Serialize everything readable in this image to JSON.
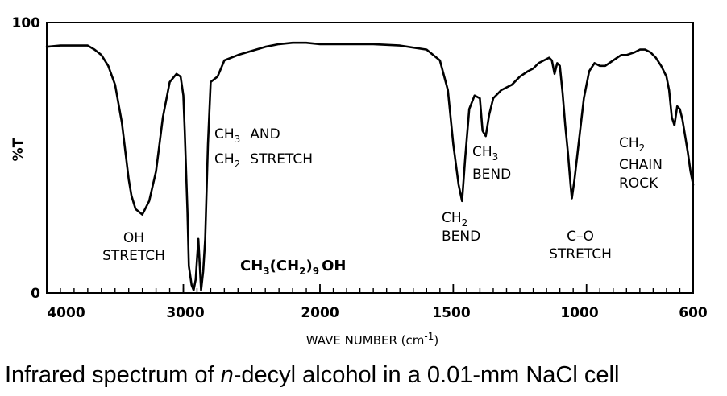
{
  "chart_data": {
    "type": "line",
    "ylabel": "%T",
    "xlabel": "WAVE NUMBER (cm",
    "xlabel_sup": "-1",
    "xlabel_end": ")",
    "xlim": [
      4000,
      600
    ],
    "ylim": [
      0,
      100
    ],
    "x_ticks": [
      4000,
      3000,
      2000,
      1500,
      1000,
      600
    ],
    "y_ticks": [
      0,
      100
    ],
    "grid": false,
    "series": [
      {
        "x": [
          4000,
          3900,
          3800,
          3700,
          3650,
          3600,
          3550,
          3500,
          3450,
          3400,
          3380,
          3350,
          3300,
          3250,
          3200,
          3150,
          3100,
          3050,
          3020,
          3000,
          2990,
          2970,
          2960,
          2940,
          2925,
          2910,
          2890,
          2870,
          2855,
          2840,
          2820,
          2800,
          2750,
          2700,
          2600,
          2500,
          2400,
          2300,
          2200,
          2100,
          2000,
          1900,
          1800,
          1700,
          1600,
          1550,
          1520,
          1500,
          1480,
          1467,
          1455,
          1440,
          1420,
          1400,
          1390,
          1378,
          1365,
          1350,
          1320,
          1300,
          1280,
          1250,
          1220,
          1200,
          1180,
          1160,
          1140,
          1130,
          1120,
          1110,
          1100,
          1090,
          1080,
          1070,
          1060,
          1055,
          1045,
          1030,
          1010,
          990,
          970,
          950,
          930,
          900,
          870,
          850,
          820,
          800,
          780,
          760,
          740,
          720,
          700,
          690,
          680,
          670,
          660,
          650,
          640,
          630,
          620,
          610,
          600
        ],
        "y": [
          91,
          91.5,
          91.5,
          91.5,
          90,
          88,
          84,
          77,
          63,
          42,
          36,
          31,
          29,
          34,
          45,
          65,
          78,
          81,
          80,
          73,
          60,
          30,
          10,
          3,
          1,
          5,
          20,
          1,
          8,
          20,
          55,
          78,
          80,
          86,
          88,
          89.5,
          91,
          92,
          92.5,
          92.5,
          92,
          92,
          92,
          91.5,
          90,
          86,
          75,
          55,
          40,
          34,
          50,
          68,
          73,
          72,
          60,
          58,
          66,
          72,
          75,
          76,
          77,
          80,
          82,
          83,
          85,
          86,
          87,
          86,
          81,
          85,
          84,
          74,
          62,
          52,
          40,
          35,
          42,
          55,
          72,
          82,
          85,
          84,
          84,
          86,
          88,
          88,
          89,
          90,
          90,
          89,
          87,
          84,
          80,
          75,
          65,
          62,
          69,
          68,
          64,
          58,
          52,
          45,
          40
        ]
      }
    ],
    "annotations": [
      {
        "lines": [
          "OH",
          "STRETCH"
        ]
      },
      {
        "lines": [
          "CH3  AND",
          "CH2  STRETCH"
        ]
      },
      {
        "lines": [
          "CH3(CH2)9OH"
        ]
      },
      {
        "lines": [
          "CH2",
          "BEND"
        ]
      },
      {
        "lines": [
          "CH3",
          "BEND"
        ]
      },
      {
        "lines": [
          "C–O",
          "STRETCH"
        ]
      },
      {
        "lines": [
          "CH2",
          "CHAIN",
          "ROCK"
        ]
      }
    ]
  },
  "labels": {
    "ylabel": "%T",
    "y_top": "100",
    "y_bottom": "0",
    "x_ticks": [
      "4000",
      "3000",
      "2000",
      "1500",
      "1000",
      "600"
    ],
    "oh": [
      "OH",
      "STRETCH"
    ],
    "ch_stretch_a": "CH",
    "ch_stretch_a_sub": "3",
    "ch_stretch_a_rest": "AND",
    "ch_stretch_b": "CH",
    "ch_stretch_b_sub": "2",
    "ch_stretch_b_rest": "STRETCH",
    "formula_a": "CH",
    "formula_a_sub": "3",
    "formula_b": "(CH",
    "formula_b_sub": "2",
    "formula_c": ")",
    "formula_c_sub": "9",
    "formula_d": "OH",
    "ch2bend_a": "CH",
    "ch2bend_sub": "2",
    "ch2bend_b": "BEND",
    "ch3bend_a": "CH",
    "ch3bend_sub": "3",
    "ch3bend_b": "BEND",
    "co_a": "C–O",
    "co_b": "STRETCH",
    "rock_a": "CH",
    "rock_sub": "2",
    "rock_b": "CHAIN",
    "rock_c": "ROCK"
  },
  "caption": {
    "pre": "Infrared spectrum of ",
    "italic": "n",
    "post": "-decyl alcohol in a 0.01-mm NaCl cell"
  }
}
